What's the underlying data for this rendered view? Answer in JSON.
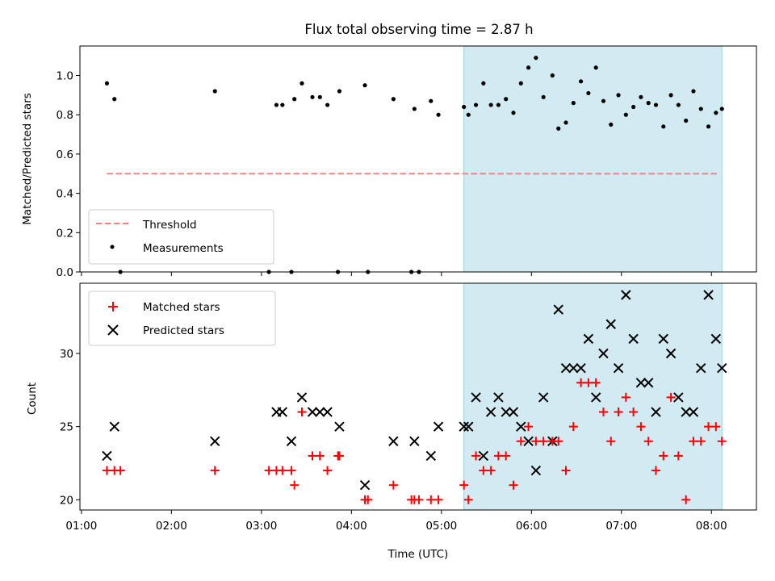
{
  "chart_data": [
    {
      "type": "scatter",
      "title": "Flux total observing time = 2.87 h",
      "xlabel": "",
      "ylabel": "Matched/Predicted stars",
      "xlim": [
        "00:59",
        "08:30"
      ],
      "ylim": [
        0,
        1.15
      ],
      "yticks": [
        0.0,
        0.2,
        0.4,
        0.6,
        0.8,
        1.0
      ],
      "ytick_labels": [
        "0.0",
        "0.2",
        "0.4",
        "0.6",
        "0.8",
        "1.0"
      ],
      "shaded_region": [
        "05:15",
        "08:07"
      ],
      "threshold": {
        "name": "Threshold",
        "value": 0.5,
        "x_range": [
          "01:17",
          "08:05"
        ],
        "color": "#ff7f7f",
        "style": "dashed"
      },
      "legend": {
        "position": "lower-left",
        "entries": [
          "Threshold",
          "Measurements"
        ]
      },
      "series": [
        {
          "name": "Measurements",
          "color": "#000000",
          "marker": "dot",
          "points": [
            [
              "01:17",
              0.96
            ],
            [
              "01:22",
              0.88
            ],
            [
              "01:26",
              0.0
            ],
            [
              "02:29",
              0.92
            ],
            [
              "03:05",
              0.0
            ],
            [
              "03:10",
              0.85
            ],
            [
              "03:14",
              0.85
            ],
            [
              "03:20",
              0.0
            ],
            [
              "03:22",
              0.88
            ],
            [
              "03:27",
              0.96
            ],
            [
              "03:34",
              0.89
            ],
            [
              "03:39",
              0.89
            ],
            [
              "03:44",
              0.85
            ],
            [
              "03:51",
              0.0
            ],
            [
              "03:52",
              0.92
            ],
            [
              "04:09",
              0.95
            ],
            [
              "04:11",
              0.0
            ],
            [
              "04:28",
              0.88
            ],
            [
              "04:40",
              0.0
            ],
            [
              "04:42",
              0.83
            ],
            [
              "04:45",
              0.0
            ],
            [
              "04:53",
              0.87
            ],
            [
              "04:58",
              0.8
            ],
            [
              "05:15",
              0.84
            ],
            [
              "05:18",
              0.8
            ],
            [
              "05:23",
              0.85
            ],
            [
              "05:28",
              0.96
            ],
            [
              "05:33",
              0.85
            ],
            [
              "05:38",
              0.85
            ],
            [
              "05:43",
              0.88
            ],
            [
              "05:48",
              0.81
            ],
            [
              "05:53",
              0.96
            ],
            [
              "05:58",
              1.04
            ],
            [
              "06:03",
              1.09
            ],
            [
              "06:08",
              0.89
            ],
            [
              "06:14",
              1.0
            ],
            [
              "06:18",
              0.73
            ],
            [
              "06:23",
              0.76
            ],
            [
              "06:28",
              0.86
            ],
            [
              "06:33",
              0.97
            ],
            [
              "06:38",
              0.91
            ],
            [
              "06:43",
              1.04
            ],
            [
              "06:48",
              0.87
            ],
            [
              "06:53",
              0.75
            ],
            [
              "06:58",
              0.9
            ],
            [
              "07:03",
              0.8
            ],
            [
              "07:08",
              0.84
            ],
            [
              "07:13",
              0.89
            ],
            [
              "07:18",
              0.86
            ],
            [
              "07:23",
              0.85
            ],
            [
              "07:28",
              0.74
            ],
            [
              "07:33",
              0.9
            ],
            [
              "07:38",
              0.85
            ],
            [
              "07:43",
              0.77
            ],
            [
              "07:48",
              0.92
            ],
            [
              "07:53",
              0.83
            ],
            [
              "07:58",
              0.74
            ],
            [
              "08:03",
              0.81
            ],
            [
              "08:07",
              0.83
            ]
          ]
        }
      ]
    },
    {
      "type": "scatter",
      "title": "",
      "xlabel": "Time (UTC)",
      "ylabel": "Count",
      "xlim": [
        "00:59",
        "08:30"
      ],
      "ylim": [
        19.3,
        34.8
      ],
      "yticks": [
        20,
        25,
        30
      ],
      "ytick_labels": [
        "20",
        "25",
        "30"
      ],
      "xticks": [
        "01:00",
        "02:00",
        "03:00",
        "04:00",
        "05:00",
        "06:00",
        "07:00",
        "08:00"
      ],
      "xtick_labels": [
        "01:00",
        "02:00",
        "03:00",
        "04:00",
        "05:00",
        "06:00",
        "07:00",
        "08:00"
      ],
      "shaded_region": [
        "05:15",
        "08:07"
      ],
      "legend": {
        "position": "upper-left",
        "entries": [
          "Matched stars",
          "Predicted stars"
        ]
      },
      "series": [
        {
          "name": "Matched stars",
          "color": "#ff0000",
          "marker": "plus",
          "points": [
            [
              "01:17",
              22
            ],
            [
              "01:22",
              22
            ],
            [
              "01:26",
              22
            ],
            [
              "02:29",
              22
            ],
            [
              "03:05",
              22
            ],
            [
              "03:10",
              22
            ],
            [
              "03:14",
              22
            ],
            [
              "03:20",
              22
            ],
            [
              "03:22",
              21
            ],
            [
              "03:27",
              26
            ],
            [
              "03:34",
              23
            ],
            [
              "03:39",
              23
            ],
            [
              "03:44",
              22
            ],
            [
              "03:51",
              23
            ],
            [
              "03:52",
              23
            ],
            [
              "04:09",
              20
            ],
            [
              "04:11",
              20
            ],
            [
              "04:28",
              21
            ],
            [
              "04:40",
              20
            ],
            [
              "04:42",
              20
            ],
            [
              "04:45",
              20
            ],
            [
              "04:53",
              20
            ],
            [
              "04:58",
              20
            ],
            [
              "05:15",
              21
            ],
            [
              "05:18",
              20
            ],
            [
              "05:23",
              23
            ],
            [
              "05:28",
              22
            ],
            [
              "05:33",
              22
            ],
            [
              "05:38",
              23
            ],
            [
              "05:43",
              23
            ],
            [
              "05:48",
              21
            ],
            [
              "05:53",
              24
            ],
            [
              "05:58",
              25
            ],
            [
              "06:03",
              24
            ],
            [
              "06:08",
              24
            ],
            [
              "06:14",
              24
            ],
            [
              "06:18",
              24
            ],
            [
              "06:23",
              22
            ],
            [
              "06:28",
              25
            ],
            [
              "06:33",
              28
            ],
            [
              "06:38",
              28
            ],
            [
              "06:43",
              28
            ],
            [
              "06:48",
              26
            ],
            [
              "06:53",
              24
            ],
            [
              "06:58",
              26
            ],
            [
              "07:03",
              27
            ],
            [
              "07:08",
              26
            ],
            [
              "07:13",
              25
            ],
            [
              "07:18",
              24
            ],
            [
              "07:23",
              22
            ],
            [
              "07:28",
              23
            ],
            [
              "07:33",
              27
            ],
            [
              "07:38",
              23
            ],
            [
              "07:43",
              20
            ],
            [
              "07:48",
              24
            ],
            [
              "07:53",
              24
            ],
            [
              "07:58",
              25
            ],
            [
              "08:03",
              25
            ],
            [
              "08:07",
              24
            ]
          ]
        },
        {
          "name": "Predicted stars",
          "color": "#000000",
          "marker": "x",
          "points": [
            [
              "01:17",
              23
            ],
            [
              "01:22",
              25
            ],
            [
              "02:29",
              24
            ],
            [
              "03:10",
              26
            ],
            [
              "03:14",
              26
            ],
            [
              "03:20",
              24
            ],
            [
              "03:27",
              27
            ],
            [
              "03:34",
              26
            ],
            [
              "03:39",
              26
            ],
            [
              "03:44",
              26
            ],
            [
              "03:52",
              25
            ],
            [
              "04:09",
              21
            ],
            [
              "04:28",
              24
            ],
            [
              "04:42",
              24
            ],
            [
              "04:53",
              23
            ],
            [
              "04:58",
              25
            ],
            [
              "05:15",
              25
            ],
            [
              "05:18",
              25
            ],
            [
              "05:23",
              27
            ],
            [
              "05:28",
              23
            ],
            [
              "05:33",
              26
            ],
            [
              "05:38",
              27
            ],
            [
              "05:43",
              26
            ],
            [
              "05:48",
              26
            ],
            [
              "05:53",
              25
            ],
            [
              "05:58",
              24
            ],
            [
              "06:03",
              22
            ],
            [
              "06:08",
              27
            ],
            [
              "06:14",
              24
            ],
            [
              "06:18",
              33
            ],
            [
              "06:23",
              29
            ],
            [
              "06:28",
              29
            ],
            [
              "06:33",
              29
            ],
            [
              "06:38",
              31
            ],
            [
              "06:43",
              27
            ],
            [
              "06:48",
              30
            ],
            [
              "06:53",
              32
            ],
            [
              "06:58",
              29
            ],
            [
              "07:03",
              34
            ],
            [
              "07:08",
              31
            ],
            [
              "07:13",
              28
            ],
            [
              "07:18",
              28
            ],
            [
              "07:23",
              26
            ],
            [
              "07:28",
              31
            ],
            [
              "07:33",
              30
            ],
            [
              "07:38",
              27
            ],
            [
              "07:43",
              26
            ],
            [
              "07:48",
              26
            ],
            [
              "07:53",
              29
            ],
            [
              "07:58",
              34
            ],
            [
              "08:03",
              31
            ],
            [
              "08:07",
              29
            ]
          ]
        }
      ]
    }
  ]
}
